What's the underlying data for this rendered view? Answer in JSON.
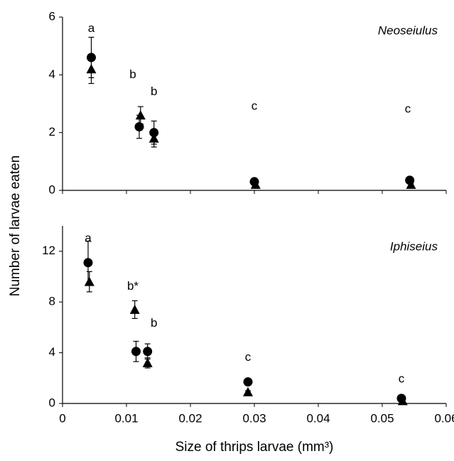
{
  "chart_data": [
    {
      "type": "scatter",
      "ylabel": "Number of larvae eaten",
      "panel_label": "Neoseiulus",
      "xlim": [
        0,
        0.06
      ],
      "xticks": [
        0,
        0.01,
        0.02,
        0.03,
        0.04,
        0.05,
        0.06
      ],
      "ylim": [
        0,
        6
      ],
      "yticks": [
        0,
        2,
        4,
        6
      ],
      "series": [
        {
          "marker": "circle",
          "color": "#000000",
          "x": [
            0.0045,
            0.012,
            0.0143,
            0.03,
            0.0543
          ],
          "values": [
            4.6,
            2.2,
            2.0,
            0.3,
            0.35
          ],
          "errors": [
            0.7,
            0.4,
            0.4,
            0.05,
            0.05
          ]
        },
        {
          "marker": "triangle",
          "color": "#000000",
          "x": [
            0.0045,
            0.0122,
            0.0143,
            0.0302,
            0.0545
          ],
          "values": [
            4.2,
            2.6,
            1.8,
            0.2,
            0.2
          ],
          "errors": [
            0.5,
            0.3,
            0.3,
            0.05,
            0.05
          ]
        }
      ],
      "annotations": [
        {
          "text": "a",
          "x": 0.0045,
          "y": 5.6
        },
        {
          "text": "b",
          "x": 0.011,
          "y": 4.0
        },
        {
          "text": "b",
          "x": 0.0143,
          "y": 3.4
        },
        {
          "text": "c",
          "x": 0.03,
          "y": 2.9
        },
        {
          "text": "c",
          "x": 0.054,
          "y": 2.8
        }
      ]
    },
    {
      "type": "scatter",
      "xlabel": "Size of thrips larvae (mm³)",
      "panel_label": "Iphiseius",
      "xlim": [
        0,
        0.06
      ],
      "xticks": [
        0,
        0.01,
        0.02,
        0.03,
        0.04,
        0.05,
        0.06
      ],
      "ylim": [
        0,
        14
      ],
      "yticks": [
        0,
        4,
        8,
        12
      ],
      "series": [
        {
          "marker": "circle",
          "color": "#000000",
          "x": [
            0.004,
            0.0115,
            0.0133,
            0.029,
            0.053
          ],
          "values": [
            11.1,
            4.1,
            4.1,
            1.7,
            0.4
          ],
          "errors": [
            1.7,
            0.8,
            0.6,
            0.1,
            0.1
          ]
        },
        {
          "marker": "triangle",
          "color": "#000000",
          "x": [
            0.0042,
            0.0113,
            0.0133,
            0.029,
            0.0532
          ],
          "values": [
            9.6,
            7.4,
            3.2,
            0.9,
            0.2
          ],
          "errors": [
            0.8,
            0.7,
            0.4,
            0.1,
            0.1
          ]
        }
      ],
      "annotations": [
        {
          "text": "a",
          "x": 0.004,
          "y": 13.0
        },
        {
          "text": "b*",
          "x": 0.011,
          "y": 9.2
        },
        {
          "text": "b",
          "x": 0.0143,
          "y": 6.3
        },
        {
          "text": "c",
          "x": 0.029,
          "y": 3.6
        },
        {
          "text": "c",
          "x": 0.053,
          "y": 1.9
        }
      ]
    }
  ]
}
